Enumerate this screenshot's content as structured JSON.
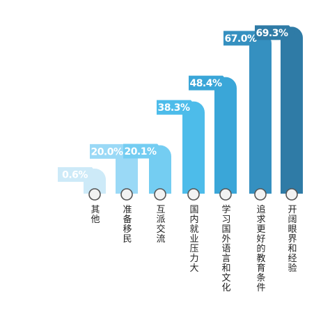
{
  "chart_data": {
    "type": "bar",
    "categories": [
      "其他",
      "准备移民",
      "互派交流",
      "国内就业压力大",
      "学习国外语言和文化",
      "追求更好的教育条件",
      "开阔眼界和经验"
    ],
    "values": [
      0.6,
      20.0,
      20.1,
      38.3,
      48.4,
      67.0,
      69.3
    ],
    "value_labels": [
      "0.6%",
      "20.0%",
      "20.1%",
      "38.3%",
      "48.4%",
      "67.0%",
      "69.3%"
    ],
    "title": "",
    "xlabel": "",
    "ylabel": "",
    "ylim": [
      0,
      70
    ],
    "grid": false,
    "legend": "none"
  },
  "colors": {
    "bars": [
      "#cdeaf8",
      "#9ad9f6",
      "#74cdf2",
      "#4dbcea",
      "#3aa6d8",
      "#3590c0",
      "#2f7ba6"
    ],
    "callouts": [
      "#cdeaf8",
      "#9ad9f6",
      "#74cdf2",
      "#4dbcea",
      "#3aa6d8",
      "#3590c0",
      "#2f7ba6"
    ],
    "callout_text": "#ffffff",
    "axis_circle_stroke": "#555555",
    "axis_circle_fill": "#f2f2f2"
  }
}
